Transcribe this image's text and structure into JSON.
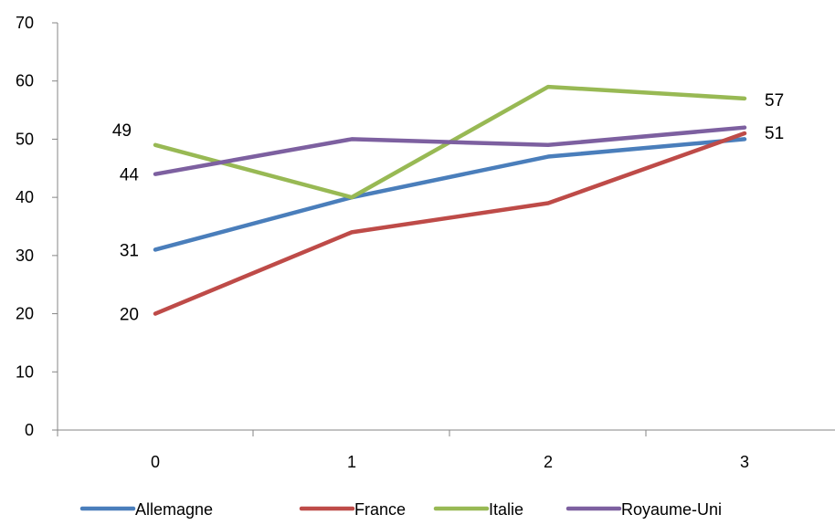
{
  "chart_data": {
    "type": "line",
    "title": "",
    "xlabel": "",
    "ylabel": "",
    "x": [
      0,
      1,
      2,
      3
    ],
    "x_tick_labels": [
      "0",
      "1",
      "2",
      "3"
    ],
    "ylim": [
      0,
      70
    ],
    "y_ticks": [
      0,
      10,
      20,
      30,
      40,
      50,
      60,
      70
    ],
    "y_tick_labels": [
      "0",
      "10",
      "20",
      "30",
      "40",
      "50",
      "60",
      "70"
    ],
    "grid": false,
    "legend_position": "bottom",
    "series": [
      {
        "name": "Allemagne",
        "color": "#4A7EBB",
        "values": [
          31,
          40,
          47,
          50
        ]
      },
      {
        "name": "France",
        "color": "#BE4B48",
        "values": [
          20,
          34,
          39,
          51
        ]
      },
      {
        "name": "Italie",
        "color": "#98B954",
        "values": [
          49,
          40,
          59,
          57
        ]
      },
      {
        "name": "Royaume-Uni",
        "color": "#7D60A0",
        "values": [
          44,
          50,
          49,
          52
        ]
      }
    ],
    "data_labels": [
      {
        "series": 0,
        "point": 0,
        "text": "31",
        "side": "left"
      },
      {
        "series": 1,
        "point": 0,
        "text": "20",
        "side": "left"
      },
      {
        "series": 2,
        "point": 0,
        "text": "49",
        "side": "left-above"
      },
      {
        "series": 3,
        "point": 0,
        "text": "44",
        "side": "left"
      },
      {
        "series": 2,
        "point": 3,
        "text": "57",
        "side": "right"
      },
      {
        "series": 1,
        "point": 3,
        "text": "51",
        "side": "right"
      }
    ]
  }
}
